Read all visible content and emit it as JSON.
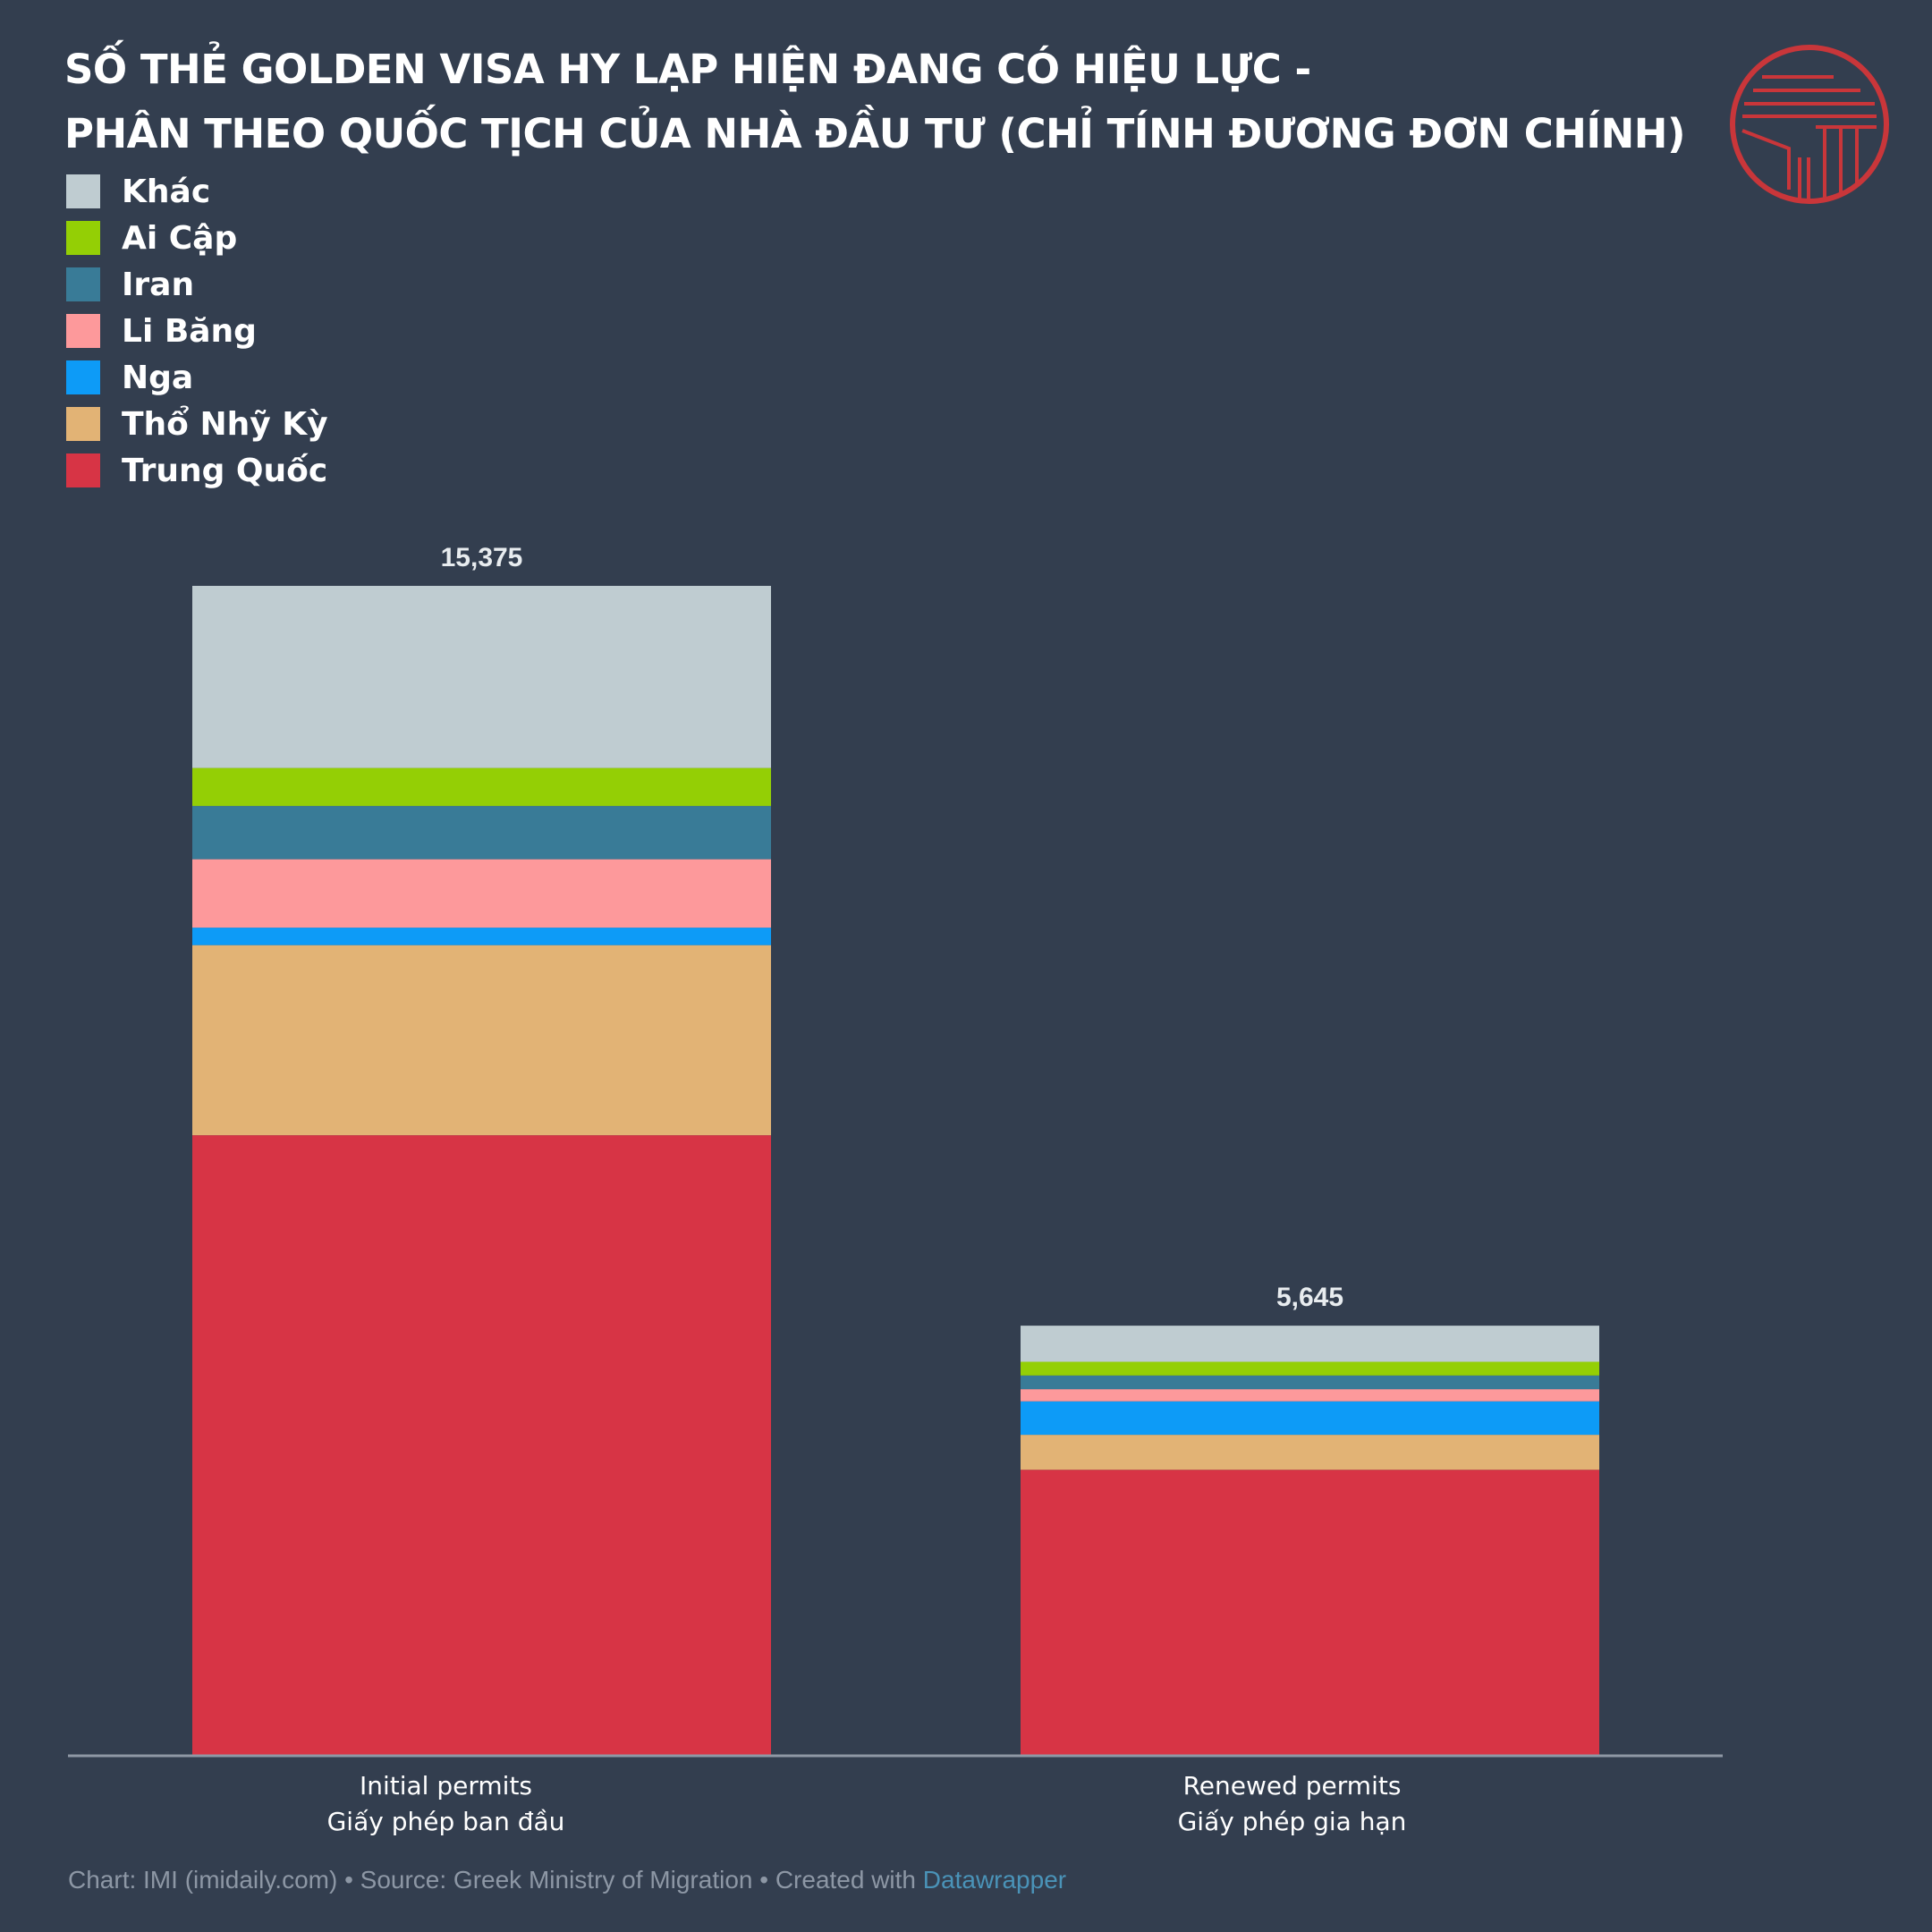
{
  "title_lines": [
    "SỐ THẺ GOLDEN VISA HY LẠP HIỆN ĐANG CÓ HIỆU LỰC -",
    "PHÂN THEO QUỐC TỊCH CỦA NHÀ ĐẦU TƯ (CHỈ TÍNH ĐƯƠNG ĐƠN CHÍNH)"
  ],
  "chart_data": {
    "type": "bar",
    "stacked": true,
    "title": "SỐ THẺ GOLDEN VISA HY LẠP HIỆN ĐANG CÓ HIỆU LỰC - PHÂN THEO QUỐC TỊCH CỦA NHÀ ĐẦU TƯ (CHỈ TÍNH ĐƯƠNG ĐƠN CHÍNH)",
    "categories": [
      {
        "line1": "Initial permits",
        "line2": "Giấy phép ban đầu"
      },
      {
        "line1": "Renewed permits",
        "line2": "Giấy phép gia hạn"
      }
    ],
    "totals": [
      15375,
      5645
    ],
    "total_labels": [
      "15,375",
      "5,645"
    ],
    "ylim": [
      0,
      15375
    ],
    "xlabel": "",
    "ylabel": "",
    "grid": false,
    "legend_position": "top-left",
    "series": [
      {
        "name": "Trung Quốc",
        "color": "#d73445",
        "values": [
          8150,
          3750
        ]
      },
      {
        "name": "Thổ Nhỹ Kỳ",
        "color": "#e2b375",
        "values": [
          2500,
          460
        ]
      },
      {
        "name": "Nga",
        "color": "#0d9bf7",
        "values": [
          230,
          440
        ]
      },
      {
        "name": "Li Băng",
        "color": "#fd999b",
        "values": [
          900,
          160
        ]
      },
      {
        "name": "Iran",
        "color": "#397b97",
        "values": [
          700,
          180
        ]
      },
      {
        "name": "Ai Cập",
        "color": "#94cf05",
        "values": [
          500,
          180
        ]
      },
      {
        "name": "Khác",
        "color": "#bfccd1",
        "values": [
          2395,
          475
        ]
      }
    ]
  },
  "legend_order": [
    "Khác",
    "Ai Cập",
    "Iran",
    "Li Băng",
    "Nga",
    "Thổ Nhỹ Kỳ",
    "Trung Quốc"
  ],
  "footer": {
    "text": "Chart: IMI (imidaily.com) • Source: Greek Ministry of Migration • Created with ",
    "link": "Datawrapper"
  },
  "colors": {
    "background": "#333e4f",
    "axis": "#8f98a5",
    "logo": "#c9363a"
  }
}
